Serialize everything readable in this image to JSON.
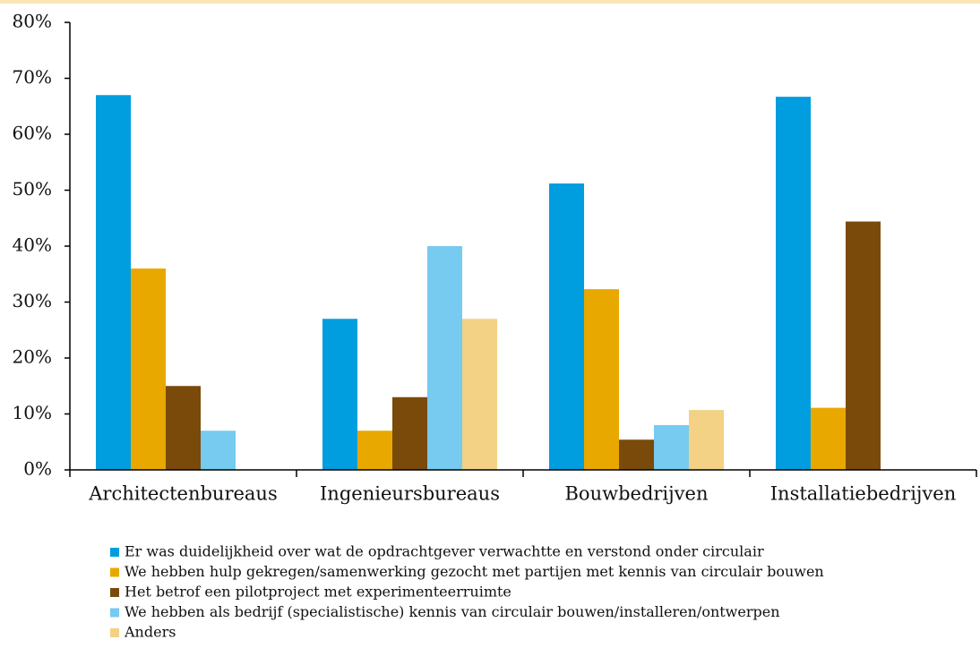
{
  "chart_data": {
    "type": "bar",
    "categories": [
      "Architectenbureaus",
      "Ingenieursbureaus",
      "Bouwbedrijven",
      "Installatiebedrijven"
    ],
    "series": [
      {
        "name": "Er was duidelijkheid over wat de opdrachtgever verwachtte en verstond onder circulair",
        "color": "#009ddf",
        "values": [
          67,
          27,
          51.2,
          66.7
        ]
      },
      {
        "name": "We hebben hulp gekregen/samenwerking gezocht met partijen met kennis van circulair bouwen",
        "color": "#e8a800",
        "values": [
          36,
          7,
          32.3,
          11.1
        ]
      },
      {
        "name": "Het betrof een pilotproject met experimenteerruimte",
        "color": "#7a4a0a",
        "values": [
          15,
          13,
          5.4,
          44.4
        ]
      },
      {
        "name": "We hebben als bedrijf (specialistische) kennis van circulair bouwen/installeren/ontwerpen",
        "color": "#77caf0",
        "values": [
          7,
          40,
          8,
          0
        ]
      },
      {
        "name": "Anders",
        "color": "#f3d185",
        "values": [
          0,
          27,
          10.7,
          0
        ]
      }
    ],
    "ylim": [
      0,
      80
    ],
    "yticks": [
      {
        "value": 0,
        "label": "0%"
      },
      {
        "value": 10,
        "label": "10%"
      },
      {
        "value": 20,
        "label": "20%"
      },
      {
        "value": 30,
        "label": "30%"
      },
      {
        "value": 40,
        "label": "40%"
      },
      {
        "value": 50,
        "label": "50%"
      },
      {
        "value": 60,
        "label": "60%"
      },
      {
        "value": 70,
        "label": "70%"
      },
      {
        "value": 80,
        "label": "80%"
      }
    ],
    "grid": false,
    "legend": "bottom"
  }
}
